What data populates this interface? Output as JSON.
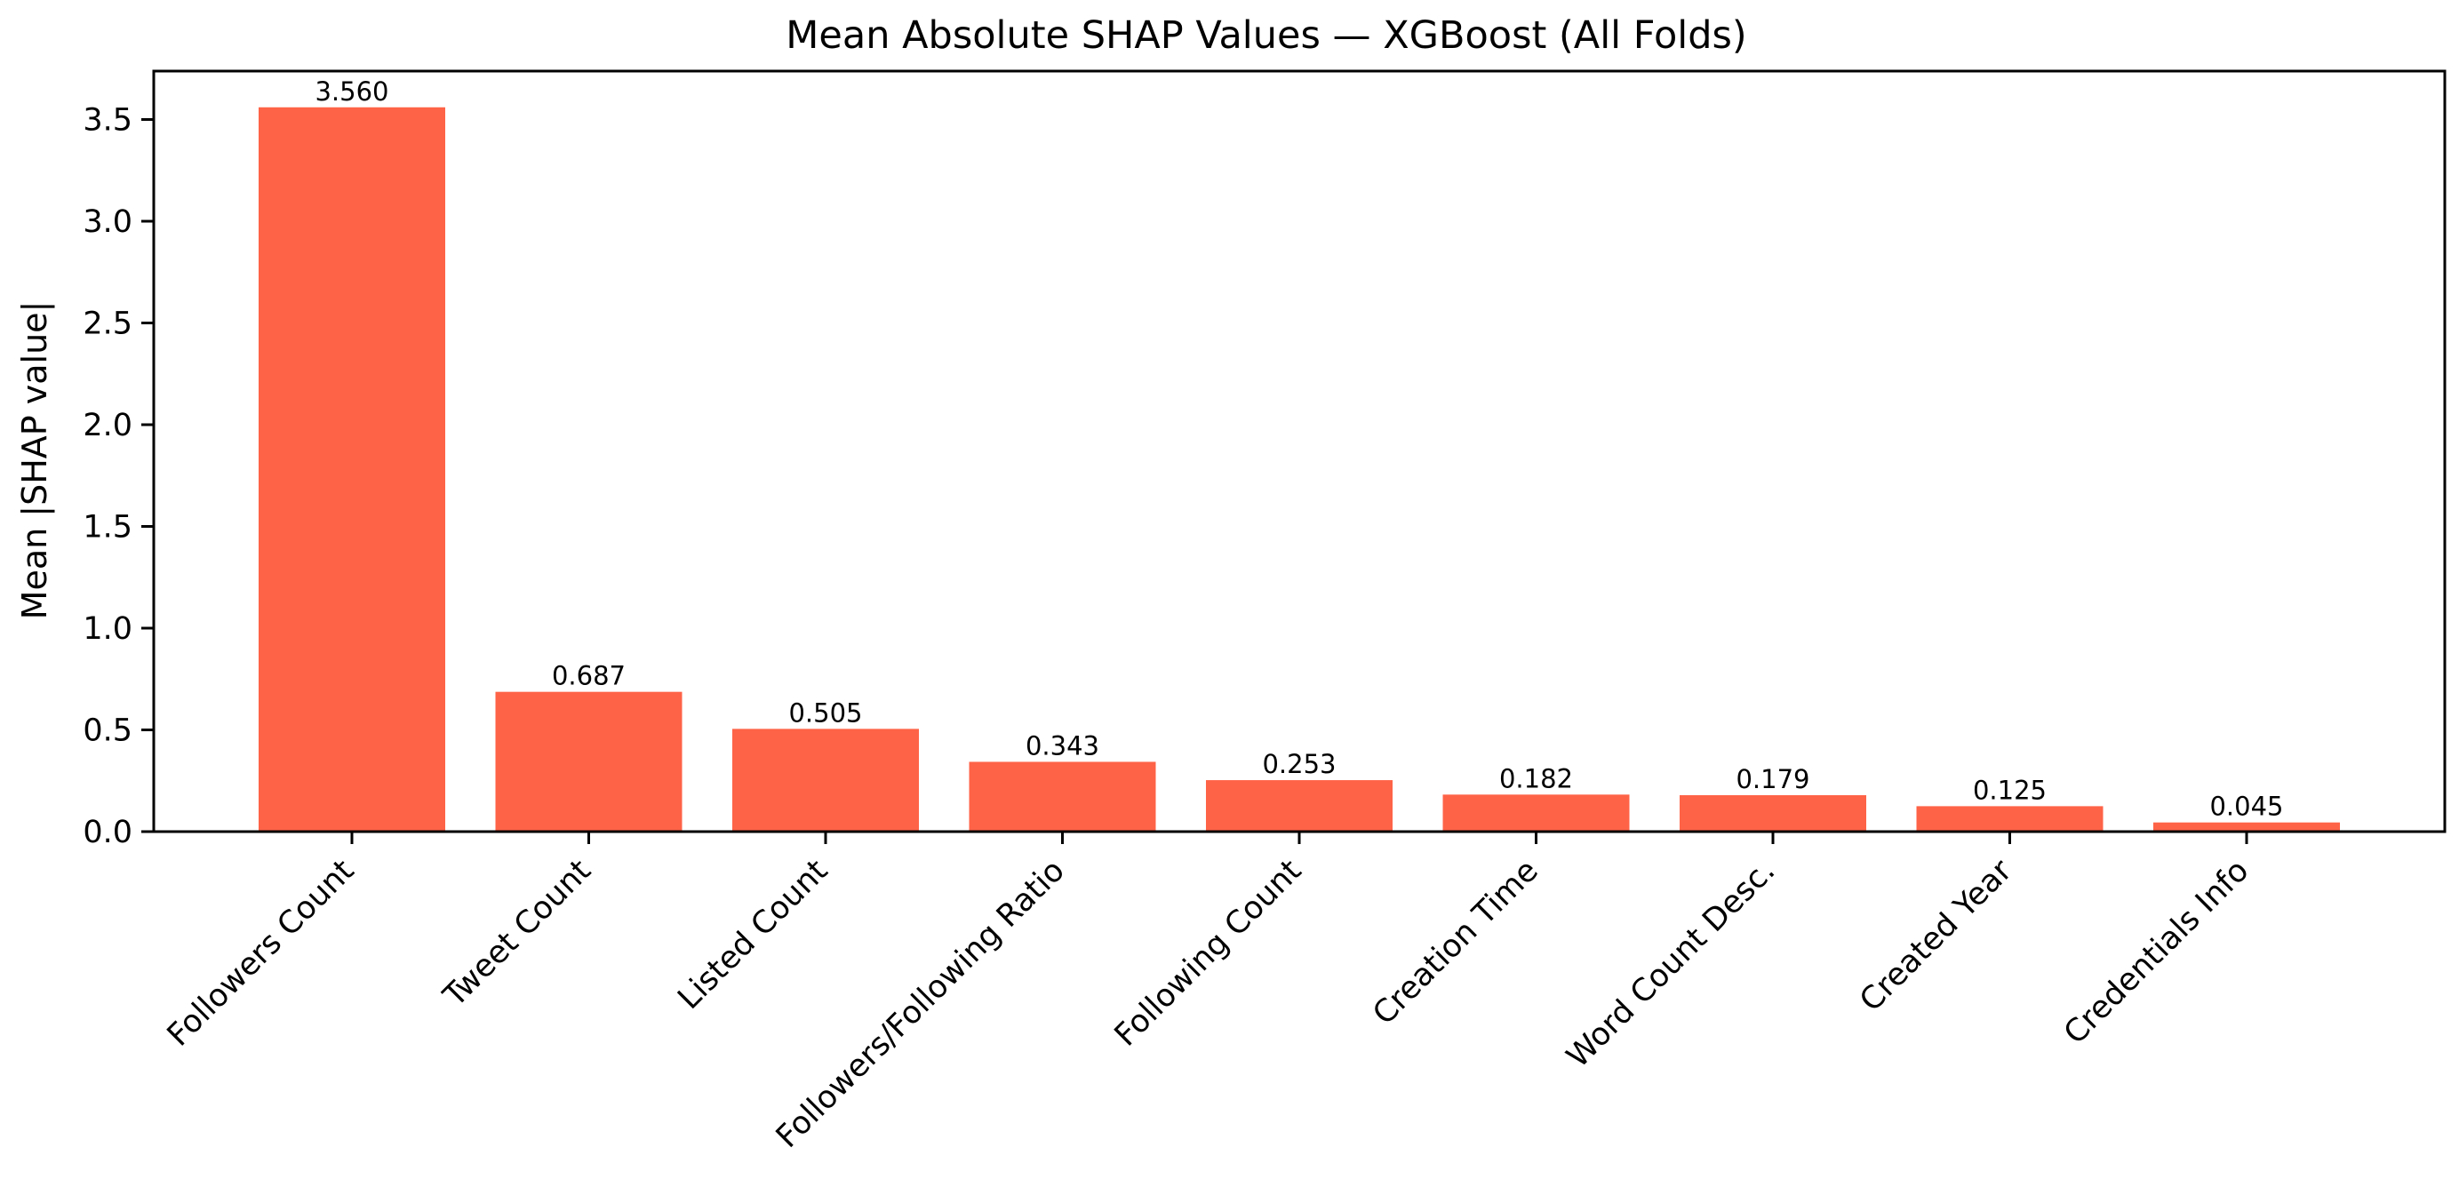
{
  "chart_data": {
    "type": "bar",
    "title": "Mean Absolute SHAP Values — XGBoost (All Folds)",
    "xlabel": "",
    "ylabel": "Mean |SHAP value|",
    "categories": [
      "Followers Count",
      "Tweet Count",
      "Listed Count",
      "Followers/Following Ratio",
      "Following Count",
      "Creation Time",
      "Word Count Desc.",
      "Created Year",
      "Credentials Info"
    ],
    "values": [
      3.56,
      0.687,
      0.505,
      0.343,
      0.253,
      0.182,
      0.179,
      0.125,
      0.045
    ],
    "value_labels": [
      "3.560",
      "0.687",
      "0.505",
      "0.343",
      "0.253",
      "0.182",
      "0.179",
      "0.125",
      "0.045"
    ],
    "ylim": [
      0,
      3.738
    ],
    "yticks": [
      0.0,
      0.5,
      1.0,
      1.5,
      2.0,
      2.5,
      3.0,
      3.5
    ],
    "ytick_labels": [
      "0.0",
      "0.5",
      "1.0",
      "1.5",
      "2.0",
      "2.5",
      "3.0",
      "3.5"
    ],
    "bar_color": "#ff6347",
    "grid": false,
    "legend": "none"
  }
}
